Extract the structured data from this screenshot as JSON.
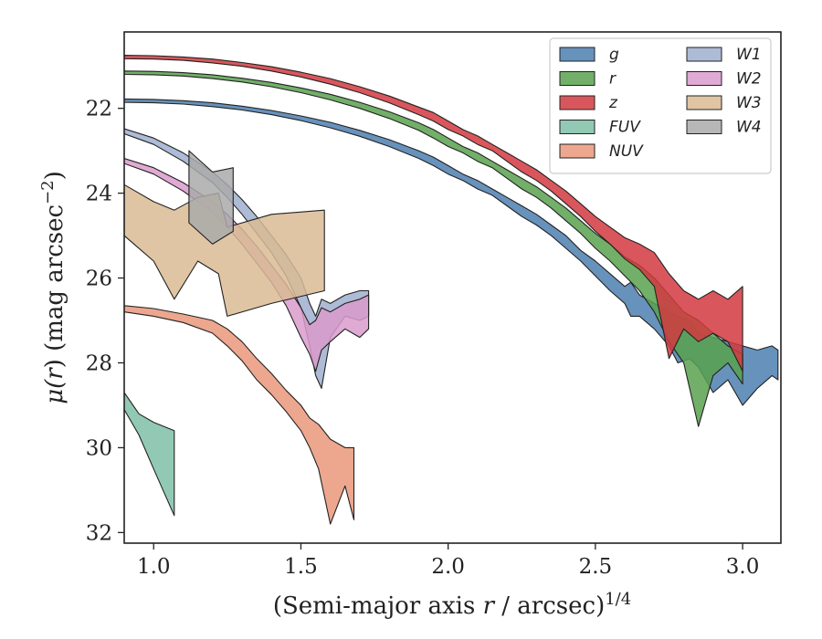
{
  "chart_data": {
    "type": "area",
    "xlabel": {
      "prefix": "(Semi-major axis ",
      "var": "r",
      "suffix": " / arcsec)",
      "sup": "1/4"
    },
    "ylabel": {
      "prefix": "μ(",
      "var": "r",
      "suffix": ") (mag arcsec",
      "sup": "−2",
      "close": ")"
    },
    "xlim": [
      0.9,
      3.13
    ],
    "ylim": [
      32.25,
      20.2
    ],
    "y_inverted": true,
    "xticks": [
      1.0,
      1.5,
      2.0,
      2.5,
      3.0
    ],
    "xtick_labels": [
      "1.0",
      "1.5",
      "2.0",
      "2.5",
      "3.0"
    ],
    "yticks": [
      22,
      24,
      26,
      28,
      30,
      32
    ],
    "ytick_labels": [
      "22",
      "24",
      "26",
      "28",
      "30",
      "32"
    ],
    "grid": false,
    "legend": {
      "placement": "top-right",
      "columns": 2
    },
    "series": [
      {
        "name": "g",
        "color": "#4c7fb0",
        "points": [
          [
            0.9,
            21.78,
            21.86
          ],
          [
            1.0,
            21.79,
            21.87
          ],
          [
            1.1,
            21.82,
            21.9
          ],
          [
            1.2,
            21.87,
            21.96
          ],
          [
            1.3,
            21.95,
            22.04
          ],
          [
            1.4,
            22.05,
            22.15
          ],
          [
            1.5,
            22.18,
            22.29
          ],
          [
            1.6,
            22.33,
            22.46
          ],
          [
            1.7,
            22.52,
            22.66
          ],
          [
            1.8,
            22.74,
            22.9
          ],
          [
            1.9,
            23.0,
            23.18
          ],
          [
            1.95,
            23.15,
            23.35
          ],
          [
            2.0,
            23.35,
            23.55
          ],
          [
            2.05,
            23.55,
            23.7
          ],
          [
            2.1,
            23.7,
            23.9
          ],
          [
            2.15,
            23.9,
            24.05
          ],
          [
            2.2,
            24.1,
            24.3
          ],
          [
            2.25,
            24.3,
            24.55
          ],
          [
            2.3,
            24.5,
            24.75
          ],
          [
            2.35,
            24.75,
            25.0
          ],
          [
            2.4,
            25.0,
            25.3
          ],
          [
            2.45,
            25.35,
            25.6
          ],
          [
            2.5,
            25.6,
            25.95
          ],
          [
            2.55,
            25.9,
            26.3
          ],
          [
            2.6,
            26.2,
            26.6
          ],
          [
            2.62,
            26.1,
            26.9
          ],
          [
            2.65,
            26.4,
            26.9
          ],
          [
            2.7,
            26.6,
            27.2
          ],
          [
            2.75,
            26.8,
            27.6
          ],
          [
            2.78,
            26.9,
            28.0
          ],
          [
            2.82,
            27.0,
            27.9
          ],
          [
            2.85,
            27.3,
            28.1
          ],
          [
            2.9,
            27.4,
            28.7
          ],
          [
            2.95,
            27.5,
            28.4
          ],
          [
            3.0,
            27.6,
            29.0
          ],
          [
            3.05,
            27.7,
            28.6
          ],
          [
            3.1,
            27.6,
            28.3
          ],
          [
            3.12,
            27.7,
            28.4
          ]
        ]
      },
      {
        "name": "r",
        "color": "#59a14f",
        "points": [
          [
            0.9,
            21.12,
            21.2
          ],
          [
            1.0,
            21.13,
            21.21
          ],
          [
            1.1,
            21.16,
            21.24
          ],
          [
            1.2,
            21.21,
            21.3
          ],
          [
            1.3,
            21.29,
            21.38
          ],
          [
            1.4,
            21.39,
            21.49
          ],
          [
            1.5,
            21.52,
            21.63
          ],
          [
            1.6,
            21.67,
            21.8
          ],
          [
            1.7,
            21.86,
            22.0
          ],
          [
            1.8,
            22.08,
            22.24
          ],
          [
            1.9,
            22.34,
            22.52
          ],
          [
            1.95,
            22.5,
            22.7
          ],
          [
            2.0,
            22.7,
            22.9
          ],
          [
            2.05,
            22.9,
            23.05
          ],
          [
            2.1,
            23.05,
            23.25
          ],
          [
            2.15,
            23.25,
            23.4
          ],
          [
            2.2,
            23.45,
            23.65
          ],
          [
            2.25,
            23.65,
            23.9
          ],
          [
            2.3,
            23.85,
            24.1
          ],
          [
            2.35,
            24.1,
            24.35
          ],
          [
            2.4,
            24.35,
            24.65
          ],
          [
            2.45,
            24.65,
            24.95
          ],
          [
            2.5,
            24.95,
            25.3
          ],
          [
            2.55,
            25.2,
            25.6
          ],
          [
            2.6,
            25.5,
            25.95
          ],
          [
            2.65,
            25.7,
            26.3
          ],
          [
            2.7,
            26.0,
            26.8
          ],
          [
            2.75,
            26.4,
            27.5
          ],
          [
            2.8,
            26.8,
            28.0
          ],
          [
            2.85,
            27.0,
            29.5
          ],
          [
            2.9,
            27.3,
            28.3
          ],
          [
            2.95,
            27.6,
            28.0
          ],
          [
            3.0,
            27.8,
            28.5
          ]
        ]
      },
      {
        "name": "z",
        "color": "#d2393f",
        "points": [
          [
            0.9,
            20.75,
            20.83
          ],
          [
            1.0,
            20.76,
            20.84
          ],
          [
            1.1,
            20.79,
            20.87
          ],
          [
            1.2,
            20.84,
            20.93
          ],
          [
            1.3,
            20.92,
            21.01
          ],
          [
            1.4,
            21.02,
            21.12
          ],
          [
            1.5,
            21.15,
            21.26
          ],
          [
            1.6,
            21.3,
            21.43
          ],
          [
            1.7,
            21.49,
            21.63
          ],
          [
            1.8,
            21.71,
            21.87
          ],
          [
            1.9,
            21.97,
            22.15
          ],
          [
            1.95,
            22.1,
            22.3
          ],
          [
            2.0,
            22.3,
            22.5
          ],
          [
            2.05,
            22.5,
            22.65
          ],
          [
            2.1,
            22.65,
            22.85
          ],
          [
            2.15,
            22.85,
            23.0
          ],
          [
            2.2,
            23.05,
            23.25
          ],
          [
            2.25,
            23.25,
            23.5
          ],
          [
            2.3,
            23.45,
            23.7
          ],
          [
            2.35,
            23.7,
            23.95
          ],
          [
            2.4,
            23.95,
            24.25
          ],
          [
            2.45,
            24.25,
            24.55
          ],
          [
            2.5,
            24.55,
            24.9
          ],
          [
            2.55,
            24.8,
            25.2
          ],
          [
            2.6,
            25.05,
            25.55
          ],
          [
            2.65,
            25.2,
            25.8
          ],
          [
            2.7,
            25.4,
            26.2
          ],
          [
            2.75,
            25.9,
            27.9
          ],
          [
            2.8,
            26.3,
            27.2
          ],
          [
            2.85,
            26.5,
            27.5
          ],
          [
            2.9,
            26.3,
            27.3
          ],
          [
            2.95,
            26.5,
            27.5
          ],
          [
            3.0,
            26.2,
            28.2
          ]
        ]
      },
      {
        "name": "FUV",
        "color": "#7fbfa8",
        "points": [
          [
            0.9,
            28.7,
            29.1
          ],
          [
            0.95,
            29.2,
            29.7
          ],
          [
            1.0,
            29.4,
            30.5
          ],
          [
            1.07,
            29.6,
            31.6
          ]
        ]
      },
      {
        "name": "NUV",
        "color": "#e9987a",
        "points": [
          [
            0.9,
            26.65,
            26.8
          ],
          [
            1.0,
            26.72,
            26.9
          ],
          [
            1.1,
            26.85,
            27.05
          ],
          [
            1.2,
            27.0,
            27.3
          ],
          [
            1.25,
            27.2,
            27.6
          ],
          [
            1.3,
            27.5,
            27.95
          ],
          [
            1.35,
            27.9,
            28.4
          ],
          [
            1.4,
            28.25,
            28.75
          ],
          [
            1.45,
            28.65,
            29.15
          ],
          [
            1.5,
            29.0,
            29.6
          ],
          [
            1.53,
            29.3,
            30.0
          ],
          [
            1.56,
            29.45,
            30.5
          ],
          [
            1.6,
            29.8,
            31.8
          ],
          [
            1.65,
            30.0,
            30.9
          ],
          [
            1.68,
            30.0,
            31.7
          ]
        ]
      },
      {
        "name": "W1",
        "color": "#9fafcf",
        "points": [
          [
            0.9,
            22.48,
            22.6
          ],
          [
            1.0,
            22.7,
            22.85
          ],
          [
            1.1,
            23.05,
            23.25
          ],
          [
            1.2,
            23.5,
            23.75
          ],
          [
            1.25,
            23.8,
            24.1
          ],
          [
            1.3,
            24.15,
            24.5
          ],
          [
            1.35,
            24.55,
            24.95
          ],
          [
            1.4,
            25.0,
            25.4
          ],
          [
            1.45,
            25.45,
            25.95
          ],
          [
            1.5,
            26.0,
            26.7
          ],
          [
            1.53,
            26.6,
            27.6
          ],
          [
            1.55,
            26.9,
            28.3
          ],
          [
            1.57,
            26.5,
            28.6
          ],
          [
            1.6,
            26.6,
            27.4
          ],
          [
            1.65,
            26.4,
            26.9
          ],
          [
            1.7,
            26.3,
            27.0
          ],
          [
            1.73,
            26.3,
            26.9
          ]
        ]
      },
      {
        "name": "W2",
        "color": "#d99bcb",
        "points": [
          [
            0.9,
            23.18,
            23.3
          ],
          [
            1.0,
            23.4,
            23.55
          ],
          [
            1.1,
            23.75,
            23.95
          ],
          [
            1.2,
            24.2,
            24.45
          ],
          [
            1.25,
            24.5,
            24.8
          ],
          [
            1.3,
            24.85,
            25.2
          ],
          [
            1.35,
            25.25,
            25.65
          ],
          [
            1.4,
            25.7,
            26.1
          ],
          [
            1.45,
            26.15,
            26.65
          ],
          [
            1.5,
            26.7,
            27.4
          ],
          [
            1.53,
            27.1,
            27.8
          ],
          [
            1.55,
            27.0,
            28.2
          ],
          [
            1.57,
            26.7,
            27.7
          ],
          [
            1.6,
            26.8,
            27.5
          ],
          [
            1.65,
            26.6,
            27.2
          ],
          [
            1.7,
            26.5,
            27.4
          ],
          [
            1.73,
            26.4,
            27.2
          ]
        ]
      },
      {
        "name": "W3",
        "color": "#d9bb94",
        "points": [
          [
            0.9,
            23.8,
            25.0
          ],
          [
            1.0,
            24.2,
            25.6
          ],
          [
            1.07,
            24.4,
            26.5
          ],
          [
            1.15,
            24.1,
            25.6
          ],
          [
            1.22,
            24.0,
            25.9
          ],
          [
            1.25,
            24.8,
            26.9
          ],
          [
            1.4,
            24.5,
            26.6
          ],
          [
            1.58,
            24.4,
            26.3
          ]
        ]
      },
      {
        "name": "W4",
        "color": "#aaaaaa",
        "points": [
          [
            1.12,
            23.0,
            24.7
          ],
          [
            1.2,
            23.5,
            25.2
          ],
          [
            1.27,
            23.4,
            24.9
          ]
        ]
      }
    ]
  }
}
